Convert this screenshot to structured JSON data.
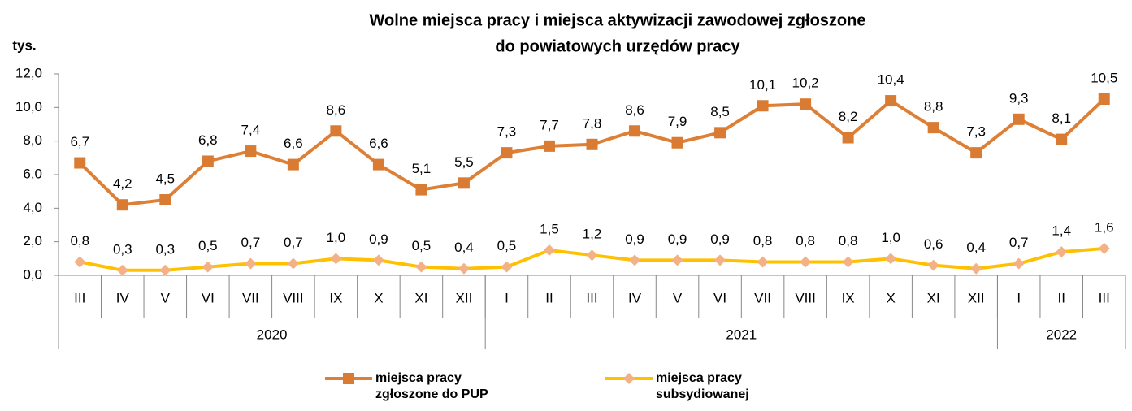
{
  "chart_data": {
    "type": "line",
    "title": [
      "Wolne miejsca pracy i miejsca aktywizacji zawodowej zgłoszone",
      "do powiatowych urzędów pracy"
    ],
    "ylabel": "tys.",
    "categories": [
      "III",
      "IV",
      "V",
      "VI",
      "VII",
      "VIII",
      "IX",
      "X",
      "XI",
      "XII",
      "I",
      "II",
      "III",
      "IV",
      "V",
      "VI",
      "VII",
      "VIII",
      "IX",
      "X",
      "XI",
      "XII",
      "I",
      "II",
      "III"
    ],
    "groups": [
      {
        "label": "2020",
        "size": 10
      },
      {
        "label": "2021",
        "size": 12
      },
      {
        "label": "2022",
        "size": 3
      }
    ],
    "series": [
      {
        "name": "miejsca pracy zgłoszone do PUP",
        "color": "#dd7f35",
        "marker_color": "#d97b32",
        "marker": "square",
        "values": [
          6.7,
          4.2,
          4.5,
          6.8,
          7.4,
          6.6,
          8.6,
          6.6,
          5.1,
          5.5,
          7.3,
          7.7,
          7.8,
          8.6,
          7.9,
          8.5,
          10.1,
          10.2,
          8.2,
          10.4,
          8.8,
          7.3,
          9.3,
          8.1,
          10.5
        ],
        "value_labels": [
          "6,7",
          "4,2",
          "4,5",
          "6,8",
          "7,4",
          "6,6",
          "8,6",
          "6,6",
          "5,1",
          "5,5",
          "7,3",
          "7,7",
          "7,8",
          "8,6",
          "7,9",
          "8,5",
          "10,1",
          "10,2",
          "8,2",
          "10,4",
          "8,8",
          "7,3",
          "9,3",
          "8,1",
          "10,5"
        ]
      },
      {
        "name": "miejsca pracy subsydiowanej",
        "color": "#ffc000",
        "marker_color": "#f4b183",
        "marker": "diamond",
        "values": [
          0.8,
          0.3,
          0.3,
          0.5,
          0.7,
          0.7,
          1.0,
          0.9,
          0.5,
          0.4,
          0.5,
          1.5,
          1.2,
          0.9,
          0.9,
          0.9,
          0.8,
          0.8,
          0.8,
          1.0,
          0.6,
          0.4,
          0.7,
          1.4,
          1.6
        ],
        "value_labels": [
          "0,8",
          "0,3",
          "0,3",
          "0,5",
          "0,7",
          "0,7",
          "1,0",
          "0,9",
          "0,5",
          "0,4",
          "0,5",
          "1,5",
          "1,2",
          "0,9",
          "0,9",
          "0,9",
          "0,8",
          "0,8",
          "0,8",
          "1,0",
          "0,6",
          "0,4",
          "0,7",
          "1,4",
          "1,6"
        ]
      }
    ],
    "ylim": [
      0,
      12
    ],
    "yticks": [
      {
        "value": 0,
        "label": "0,0"
      },
      {
        "value": 2,
        "label": "2,0"
      },
      {
        "value": 4,
        "label": "4,0"
      },
      {
        "value": 6,
        "label": "6,0"
      },
      {
        "value": 8,
        "label": "8,0"
      },
      {
        "value": 10,
        "label": "10,0"
      },
      {
        "value": 12,
        "label": "12,0"
      }
    ],
    "grid": false
  }
}
